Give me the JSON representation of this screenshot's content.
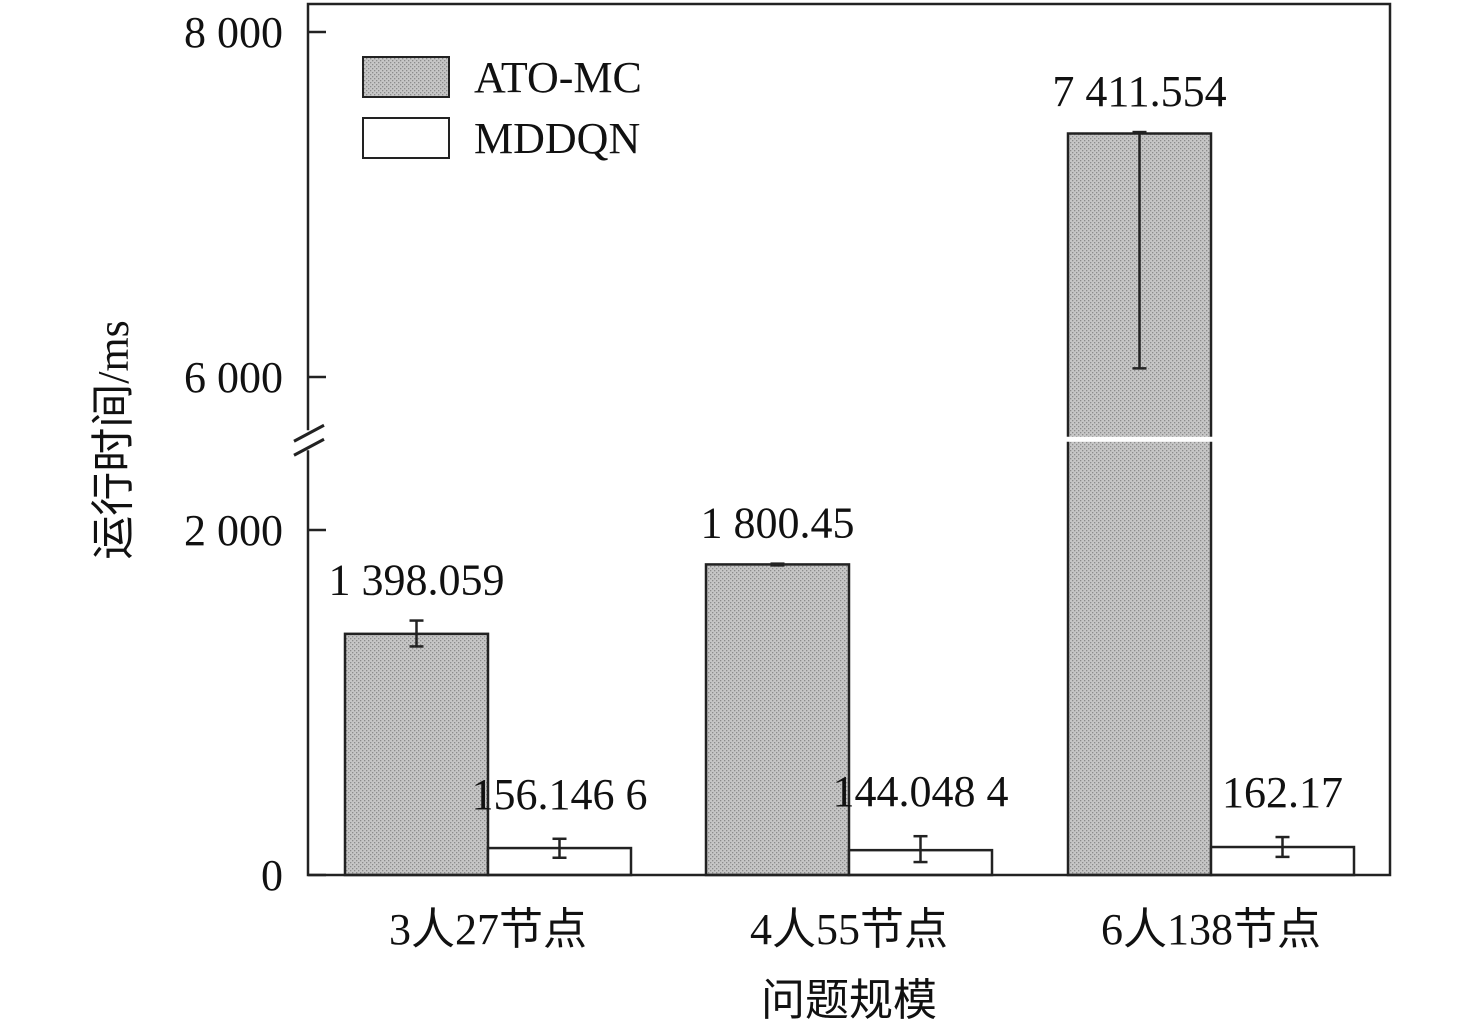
{
  "chart_data": {
    "type": "bar",
    "title": "",
    "xlabel": "问题规模",
    "ylabel": "运行时间/ms",
    "categories": [
      "3人27节点",
      "4人55节点",
      "6人138节点"
    ],
    "series": [
      {
        "name": "ATO-MC",
        "values": [
          1398.059,
          1800.45,
          7411.554
        ],
        "error_low": [
          1325,
          1795,
          6050
        ],
        "error_high": [
          1475,
          1805,
          7420
        ],
        "labels": [
          "1 398.059",
          "1 800.45",
          "7 411.554"
        ]
      },
      {
        "name": "MDDQN",
        "values": [
          156.1466,
          144.0484,
          162.17
        ],
        "error_low": [
          100,
          75,
          105
        ],
        "error_high": [
          210,
          225,
          220
        ],
        "labels": [
          "156.146 6",
          "144.048 4",
          "162.17"
        ]
      }
    ],
    "yticks": [
      {
        "value": 0,
        "label": "0"
      },
      {
        "value": 2000,
        "label": "2 000"
      },
      {
        "value": 6000,
        "label": "6 000"
      },
      {
        "value": 8000,
        "label": "8 000"
      }
    ],
    "axis_break": [
      2500,
      5700
    ],
    "ylim": [
      0,
      8000
    ],
    "legend_position": "top-left",
    "grid": false,
    "colors": {
      "ato_fill": "#c4c4c4",
      "mddqn_fill": "#ffffff",
      "stroke": "#222222"
    }
  }
}
